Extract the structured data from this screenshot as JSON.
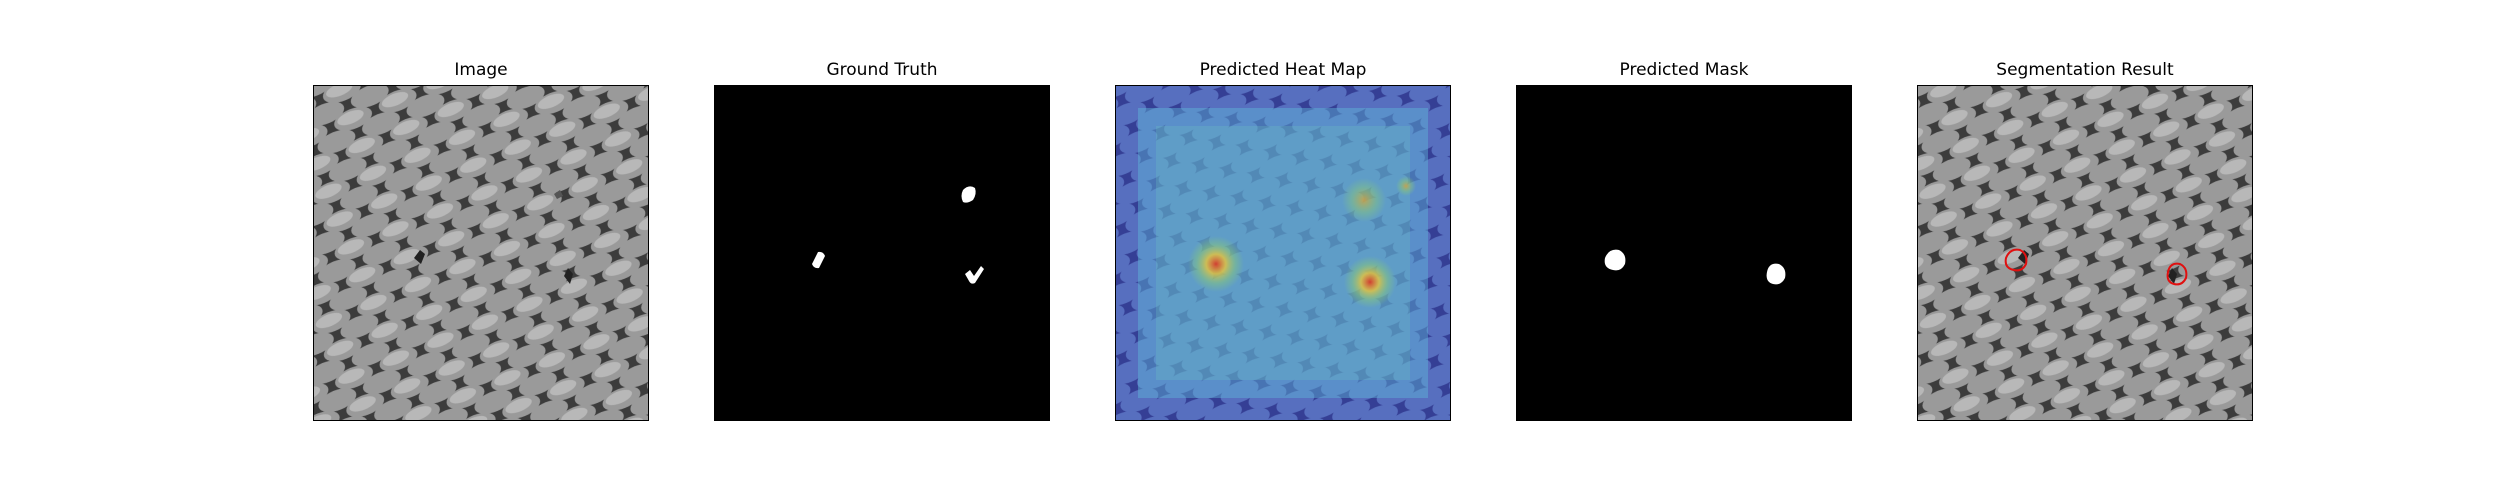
{
  "panels": [
    {
      "title": "Image"
    },
    {
      "title": "Ground Truth"
    },
    {
      "title": "Predicted Heat Map"
    },
    {
      "title": "Predicted Mask"
    },
    {
      "title": "Segmentation Result"
    }
  ],
  "colors": {
    "background": "#ffffff",
    "mask_foreground": "#ffffff",
    "mask_background": "#000000",
    "texture_light": "#a8a8a8",
    "texture_dark": "#3a3a3a",
    "heatmap_low": "#3b3fb8",
    "heatmap_mid": "#5fb6d6",
    "heatmap_high": "#d63a2a",
    "contour": "#e01010"
  }
}
